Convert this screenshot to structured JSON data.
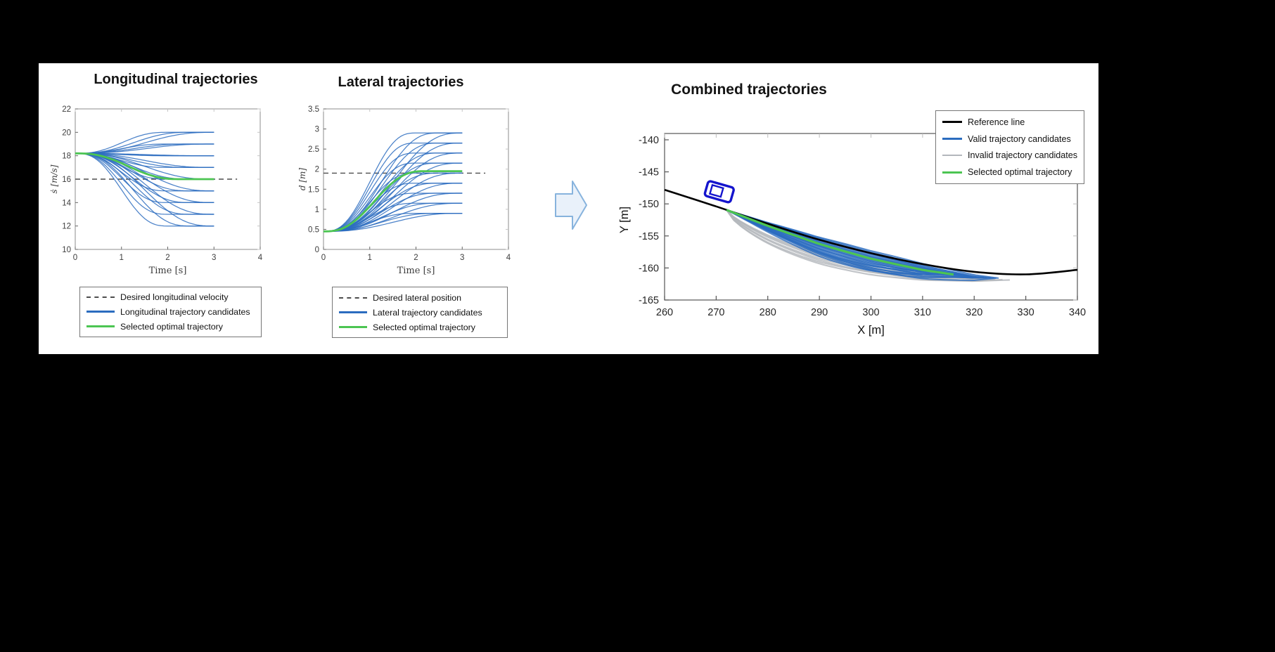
{
  "scene": {
    "background_color": "#000000",
    "panel_color": "#ffffff"
  },
  "colors": {
    "candidate_blue": "#2b6cbf",
    "selected_green": "#4cc552",
    "invalid_gray": "#b3b7bc",
    "reference_black": "#000000",
    "desired_dash_gray": "#4d4d4d",
    "vehicle_blue": "#1414cd",
    "arrow_fill": "#e9f1fa",
    "arrow_stroke": "#87b3dd"
  },
  "icons": {
    "flow_arrow": "block-arrow-right",
    "ego_vehicle": "car-outline"
  },
  "chart_data": [
    {
      "id": "longitudinal",
      "type": "line",
      "title": "Longitudinal trajectories",
      "xlabel": "Time [s]",
      "ylabel": "ṡ [m/s]",
      "xlim": [
        0,
        4
      ],
      "ylim": [
        10,
        22
      ],
      "xticks": [
        0,
        1,
        2,
        3,
        4
      ],
      "yticks": [
        10,
        12,
        14,
        16,
        18,
        20,
        22
      ],
      "grid": false,
      "start_value": 18.2,
      "desired_value": 16,
      "desired_line_extent": 3.5,
      "trajectory_end_times": [
        2,
        2.5,
        3
      ],
      "trajectory_end_values": [
        12,
        13,
        14,
        15,
        16,
        17,
        18,
        19,
        20
      ],
      "selected": {
        "end_value": 16,
        "end_time": 2.3
      },
      "legend": [
        {
          "label": "Desired longitudinal velocity",
          "style": "dashed"
        },
        {
          "label": "Longitudinal trajectory candidates",
          "style": "blue"
        },
        {
          "label": "Selected optimal trajectory",
          "style": "green"
        }
      ]
    },
    {
      "id": "lateral",
      "type": "line",
      "title": "Lateral trajectories",
      "xlabel": "Time [s]",
      "ylabel": "d [m]",
      "xlim": [
        0,
        4
      ],
      "ylim": [
        0,
        3.5
      ],
      "xticks": [
        0,
        1,
        2,
        3,
        4
      ],
      "yticks": [
        0,
        0.5,
        1,
        1.5,
        2,
        2.5,
        3,
        3.5
      ],
      "grid": false,
      "start_value": 0.45,
      "desired_value": 1.9,
      "desired_line_extent": 3.5,
      "trajectory_end_times": [
        2,
        2.5,
        3
      ],
      "trajectory_end_values": [
        0.9,
        1.15,
        1.4,
        1.65,
        1.9,
        2.15,
        2.4,
        2.65,
        2.9
      ],
      "selected": {
        "end_value": 1.95,
        "end_time": 2.2
      },
      "legend": [
        {
          "label": "Desired lateral position",
          "style": "dashed"
        },
        {
          "label": "Lateral trajectory candidates",
          "style": "blue"
        },
        {
          "label": "Selected optimal trajectory",
          "style": "green"
        }
      ]
    },
    {
      "id": "combined",
      "type": "line",
      "title": "Combined trajectories",
      "xlabel": "X [m]",
      "ylabel": "Y [m]",
      "xlim": [
        260,
        340
      ],
      "ylim": [
        -165,
        -140
      ],
      "xticks": [
        260,
        270,
        280,
        290,
        300,
        310,
        320,
        330,
        340
      ],
      "yticks": [
        -165,
        -160,
        -155,
        -150,
        -145,
        -140
      ],
      "grid": false,
      "reference_points": [
        [
          260,
          -147.8
        ],
        [
          270,
          -150.4
        ],
        [
          280,
          -153.1
        ],
        [
          290,
          -155.6
        ],
        [
          300,
          -157.7
        ],
        [
          310,
          -159.4
        ],
        [
          320,
          -160.6
        ],
        [
          330,
          -161.0
        ],
        [
          340,
          -160.3
        ]
      ],
      "start_point": [
        272,
        -150.9
      ],
      "valid_candidates": {
        "count": 22,
        "end_x_min": 312,
        "end_x_max": 325,
        "offset_min": -2.4,
        "offset_max": 0.8
      },
      "invalid_candidates": {
        "count": 7,
        "end_x_min": 317,
        "end_x_max": 327,
        "offset_min": -1.8,
        "offset_max": -3.4
      },
      "selected": {
        "end_x": 316,
        "offset": -0.3
      },
      "vehicle": {
        "x": 270.6,
        "y": -148.1,
        "length_m": 5.2,
        "width_m": 2.4,
        "heading_deg": 16
      },
      "legend": [
        {
          "label": "Reference line",
          "style": "black"
        },
        {
          "label": "Valid trajectory candidates",
          "style": "blue"
        },
        {
          "label": "Invalid trajectory candidates",
          "style": "gray"
        },
        {
          "label": "Selected optimal trajectory",
          "style": "green"
        }
      ]
    }
  ]
}
